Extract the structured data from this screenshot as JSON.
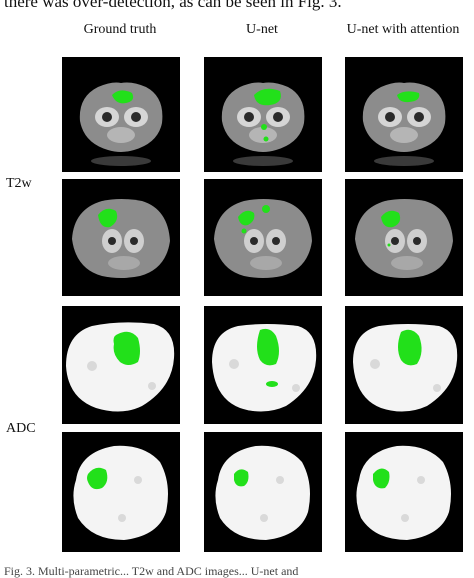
{
  "header_text": "there was over-detection, as can be seen in Fig. 3.",
  "columns": [
    {
      "label": "Ground truth"
    },
    {
      "label": "U-net"
    },
    {
      "label": "U-net with attention"
    }
  ],
  "row_labels": {
    "t2w": "T2w",
    "adc": "ADC"
  },
  "caption_text": "Fig. 3. Multi-parametric... T2w and ADC images... U-net and",
  "colors": {
    "segmentation": "#22e01a",
    "background": "#000000",
    "adc_tissue": "#f4f4f4",
    "t2w_tissue": "#8c8c8c"
  }
}
